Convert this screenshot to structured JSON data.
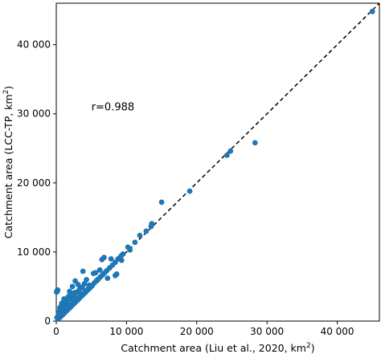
{
  "chart_data": {
    "type": "scatter",
    "xlabel": "Catchment area (Liu et al., 2020, km",
    "xlabel_sup": "2",
    "xlabel_end": ")",
    "ylabel": "Catchment area (LCC-TP, km",
    "ylabel_sup": "2",
    "ylabel_end": ")",
    "annotation": "r=0.988",
    "annotation_pos": {
      "x": 5000,
      "y": 30500
    },
    "xlim": [
      0,
      46000
    ],
    "ylim": [
      0,
      46000
    ],
    "xticks": [
      0,
      10000,
      20000,
      30000,
      40000
    ],
    "yticks": [
      0,
      10000,
      20000,
      30000,
      40000
    ],
    "xtick_labels": [
      "0",
      "10 000",
      "20 000",
      "30 000",
      "40 000"
    ],
    "ytick_labels": [
      "0",
      "10 000",
      "20 000",
      "30 000",
      "40 000"
    ],
    "grid": false,
    "legend": "none",
    "point_color": "#1f77b4",
    "reference_line": {
      "style": "dashed",
      "color": "#000000",
      "from": [
        0,
        0
      ],
      "to": [
        46000,
        46000
      ]
    },
    "x": [
      45000,
      28300,
      24800,
      24300,
      19000,
      15000,
      13600,
      13500,
      12800,
      11900,
      11200,
      10500,
      10200,
      9500,
      9200,
      8800,
      8400,
      8000,
      7600,
      7200,
      6900,
      6600,
      6300,
      6000,
      5700,
      5400,
      5100,
      4800,
      4500,
      4200,
      3900,
      3600,
      3300,
      3000,
      2700,
      2400,
      2100,
      1800,
      1500,
      1200,
      900,
      600,
      300,
      200,
      150,
      100,
      50,
      8400,
      9300,
      7800,
      7300,
      6800,
      6500,
      8600,
      3800,
      2700,
      2300,
      1900,
      1600,
      1300,
      1000,
      700,
      500,
      2100,
      3300,
      4300,
      5300,
      5600,
      6200,
      2500,
      1700,
      1100,
      800,
      3100,
      4700,
      5800,
      2900,
      1400,
      900,
      600,
      400,
      300,
      3700,
      4000,
      2200,
      1500,
      2600,
      1800,
      1200,
      3400,
      2000,
      100,
      400,
      800,
      1200,
      1700,
      2300,
      2900,
      3500,
      4100,
      4600
    ],
    "y": [
      44800,
      25800,
      24600,
      24000,
      18800,
      17200,
      14100,
      13700,
      13000,
      12400,
      11400,
      10300,
      10700,
      9700,
      9400,
      9000,
      8500,
      8100,
      7700,
      7300,
      7000,
      6700,
      6400,
      6100,
      5800,
      5500,
      5100,
      4800,
      4500,
      4200,
      3900,
      3600,
      3300,
      3000,
      2700,
      2400,
      2100,
      1800,
      1500,
      1200,
      900,
      600,
      300,
      4500,
      4300,
      4400,
      4200,
      6600,
      8800,
      9000,
      6200,
      9200,
      8900,
      6800,
      7200,
      5800,
      5000,
      4300,
      3300,
      2800,
      2500,
      2200,
      1900,
      3800,
      4600,
      6000,
      6900,
      7000,
      7400,
      3700,
      3500,
      3200,
      2600,
      5300,
      5200,
      5900,
      4200,
      2500,
      2000,
      1600,
      1300,
      1100,
      4900,
      5400,
      3100,
      2900,
      4100,
      3600,
      2100,
      4000,
      3300,
      500,
      900,
      1400,
      1800,
      2400,
      2900,
      3400,
      3900,
      4400,
      4800
    ]
  }
}
